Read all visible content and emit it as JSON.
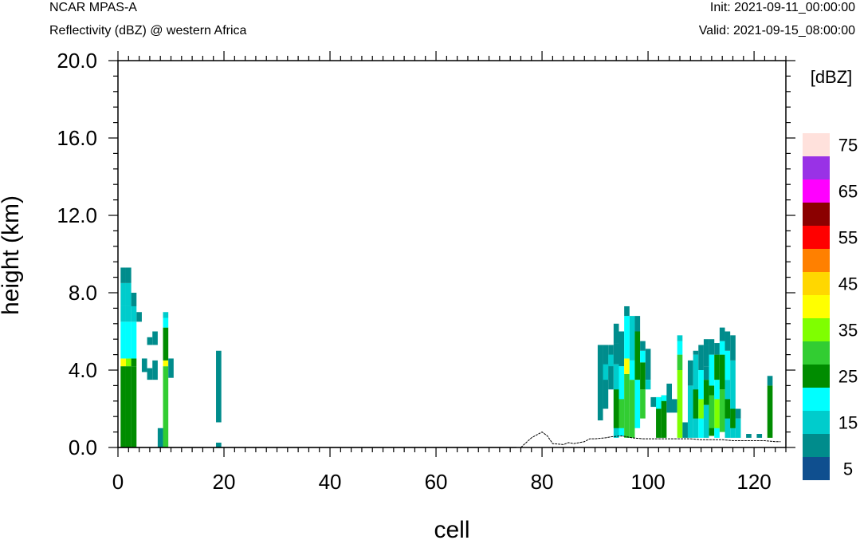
{
  "header": {
    "model": "NCAR MPAS-A",
    "field": "Reflectivity (dBZ) @ western Africa",
    "init": "Init: 2021-09-11_00:00:00",
    "valid": "Valid: 2021-09-15_08:00:00"
  },
  "chart_data": {
    "type": "heatmap",
    "xlabel": "cell",
    "ylabel": "height (km)",
    "xlim": [
      0,
      126
    ],
    "ylim": [
      0,
      20
    ],
    "x_ticks": [
      0,
      20,
      40,
      60,
      80,
      100,
      120
    ],
    "y_ticks": [
      "0.0",
      "4.0",
      "8.0",
      "12.0",
      "16.0",
      "20.0"
    ],
    "colorbar": {
      "label": "[dBZ]",
      "levels": [
        5,
        10,
        15,
        20,
        25,
        30,
        35,
        40,
        45,
        50,
        55,
        60,
        65,
        70,
        75
      ],
      "tick_labels": [
        "5",
        "15",
        "25",
        "35",
        "45",
        "55",
        "65",
        "75"
      ],
      "colors": [
        "#0f4f8f",
        "#008c8c",
        "#00cccc",
        "#00ffff",
        "#008c00",
        "#32cd32",
        "#7fff00",
        "#ffff00",
        "#ffd700",
        "#ff8000",
        "#ff0000",
        "#8b0000",
        "#ff00ff",
        "#9932e6",
        "#ffe1dc"
      ]
    },
    "terrain": [
      [
        76,
        0
      ],
      [
        78,
        0.5
      ],
      [
        80,
        0.8
      ],
      [
        81,
        0.6
      ],
      [
        82,
        0.2
      ],
      [
        84,
        0.15
      ],
      [
        85,
        0.25
      ],
      [
        86,
        0.2
      ],
      [
        88,
        0.3
      ],
      [
        89,
        0.45
      ],
      [
        90,
        0.45
      ],
      [
        92,
        0.5
      ],
      [
        93,
        0.55
      ],
      [
        95,
        0.6
      ],
      [
        97,
        0.5
      ],
      [
        99,
        0.45
      ],
      [
        102,
        0.45
      ],
      [
        104,
        0.45
      ],
      [
        106,
        0.45
      ],
      [
        108,
        0.45
      ],
      [
        110,
        0.4
      ],
      [
        112,
        0.4
      ],
      [
        114,
        0.4
      ],
      [
        116,
        0.35
      ],
      [
        118,
        0.35
      ],
      [
        120,
        0.35
      ],
      [
        122,
        0.35
      ],
      [
        124,
        0.3
      ],
      [
        125,
        0.3
      ]
    ],
    "cells": [
      [
        1,
        0,
        4.2,
        4
      ],
      [
        1,
        4.2,
        4.6,
        7
      ],
      [
        1,
        4.6,
        6.5,
        3
      ],
      [
        1,
        6.5,
        7.3,
        2
      ],
      [
        1,
        7.3,
        8.5,
        2
      ],
      [
        1,
        8.5,
        9.3,
        1
      ],
      [
        2,
        0,
        4.2,
        4
      ],
      [
        2,
        4.2,
        4.6,
        6
      ],
      [
        2,
        4.6,
        6.5,
        3
      ],
      [
        2,
        6.5,
        7.3,
        2
      ],
      [
        2,
        7.3,
        8.5,
        2
      ],
      [
        2,
        8.5,
        9.3,
        1
      ],
      [
        3,
        0,
        4.2,
        4
      ],
      [
        3,
        4.2,
        4.6,
        4
      ],
      [
        3,
        4.6,
        6.5,
        3
      ],
      [
        3,
        6.5,
        7.3,
        2
      ],
      [
        3,
        7.3,
        8.0,
        1
      ],
      [
        4,
        6.5,
        7.0,
        1
      ],
      [
        5,
        3.9,
        4.6,
        1
      ],
      [
        6,
        3.5,
        4.1,
        1
      ],
      [
        6,
        5.3,
        5.7,
        1
      ],
      [
        7,
        3.5,
        4.5,
        1
      ],
      [
        7,
        5.3,
        6.0,
        1
      ],
      [
        8,
        0,
        1.0,
        1
      ],
      [
        9,
        0,
        4.2,
        5
      ],
      [
        9,
        4.2,
        4.5,
        7
      ],
      [
        9,
        4.5,
        6.2,
        4
      ],
      [
        9,
        6.2,
        6.7,
        3
      ],
      [
        9,
        6.7,
        7.0,
        2
      ],
      [
        10,
        3.6,
        4.6,
        1
      ],
      [
        19,
        0,
        0.25,
        1
      ],
      [
        19,
        1.3,
        5.0,
        1
      ],
      [
        91,
        1.4,
        5.3,
        1
      ],
      [
        92,
        2.0,
        5.3,
        1
      ],
      [
        92,
        3.5,
        4.3,
        2
      ],
      [
        93,
        3.0,
        5.3,
        1
      ],
      [
        93,
        4.2,
        4.8,
        2
      ],
      [
        94,
        0.5,
        4.3,
        2
      ],
      [
        94,
        1.0,
        3.0,
        4
      ],
      [
        94,
        4.3,
        5.4,
        1
      ],
      [
        94,
        5.4,
        6.4,
        1
      ],
      [
        95,
        0.6,
        4.2,
        3
      ],
      [
        95,
        1.0,
        2.5,
        5
      ],
      [
        95,
        4.2,
        6.0,
        1
      ],
      [
        96,
        0.5,
        3.8,
        5
      ],
      [
        96,
        3.8,
        4.6,
        7
      ],
      [
        96,
        4.6,
        6.8,
        3
      ],
      [
        96,
        6.8,
        7.3,
        1
      ],
      [
        97,
        0.5,
        3.5,
        5
      ],
      [
        97,
        3.5,
        4.5,
        3
      ],
      [
        97,
        4.5,
        6.8,
        2
      ],
      [
        98,
        1.0,
        3.5,
        3
      ],
      [
        98,
        3.5,
        6.0,
        4
      ],
      [
        98,
        6.0,
        6.8,
        1
      ],
      [
        99,
        1.5,
        3.0,
        5
      ],
      [
        99,
        3.0,
        4.4,
        4
      ],
      [
        99,
        4.4,
        5.0,
        3
      ],
      [
        99,
        5.0,
        5.5,
        1
      ],
      [
        100,
        3.5,
        5.1,
        1
      ],
      [
        100,
        3.0,
        3.5,
        2
      ],
      [
        101,
        2.1,
        2.6,
        1
      ],
      [
        102,
        0.5,
        2.6,
        4
      ],
      [
        102,
        2.0,
        2.6,
        3
      ],
      [
        103,
        0.5,
        2.7,
        4
      ],
      [
        103,
        2.4,
        2.7,
        3
      ],
      [
        104,
        1.8,
        3.3,
        1
      ],
      [
        105,
        1.8,
        2.5,
        1
      ],
      [
        106,
        0.5,
        4.0,
        6
      ],
      [
        106,
        4.0,
        4.8,
        5
      ],
      [
        106,
        4.8,
        5.5,
        3
      ],
      [
        106,
        5.5,
        5.8,
        2
      ],
      [
        107,
        0.5,
        1.3,
        1
      ],
      [
        108,
        0.5,
        3.2,
        2
      ],
      [
        108,
        3.2,
        4.5,
        1
      ],
      [
        109,
        0.5,
        4.8,
        2
      ],
      [
        109,
        1.5,
        3.0,
        4
      ],
      [
        109,
        4.8,
        5.0,
        1
      ],
      [
        110,
        0.5,
        4.0,
        3
      ],
      [
        110,
        1.5,
        2.5,
        6
      ],
      [
        110,
        4.0,
        5.3,
        1
      ],
      [
        111,
        0.5,
        2.2,
        2
      ],
      [
        111,
        2.2,
        3.5,
        4
      ],
      [
        111,
        3.5,
        4.2,
        1
      ],
      [
        111,
        4.2,
        5.3,
        1
      ],
      [
        111,
        5.3,
        5.6,
        1
      ],
      [
        112,
        0.6,
        3.2,
        4
      ],
      [
        112,
        1.0,
        2.7,
        5
      ],
      [
        112,
        3.2,
        4.8,
        3
      ],
      [
        112,
        4.8,
        5.6,
        1
      ],
      [
        113,
        0.5,
        3.5,
        3
      ],
      [
        113,
        1.0,
        2.5,
        6
      ],
      [
        113,
        3.5,
        4.8,
        4
      ],
      [
        113,
        4.8,
        5.4,
        1
      ],
      [
        114,
        0.8,
        3.0,
        5
      ],
      [
        114,
        3.0,
        4.8,
        4
      ],
      [
        114,
        4.8,
        5.5,
        3
      ],
      [
        114,
        5.5,
        6.2,
        1
      ],
      [
        115,
        0.5,
        3.5,
        2
      ],
      [
        115,
        1.5,
        2.5,
        4
      ],
      [
        115,
        3.5,
        5.0,
        3
      ],
      [
        115,
        5.0,
        6.0,
        1
      ],
      [
        116,
        0.5,
        4.5,
        2
      ],
      [
        116,
        1.0,
        2.0,
        4
      ],
      [
        116,
        4.5,
        5.8,
        1
      ],
      [
        117,
        0.5,
        1.5,
        2
      ],
      [
        117,
        1.5,
        2.0,
        1
      ],
      [
        119,
        0.5,
        0.7,
        1
      ],
      [
        121,
        0.5,
        0.7,
        1
      ],
      [
        123,
        0.5,
        3.2,
        4
      ],
      [
        123,
        3.2,
        3.7,
        1
      ]
    ]
  }
}
